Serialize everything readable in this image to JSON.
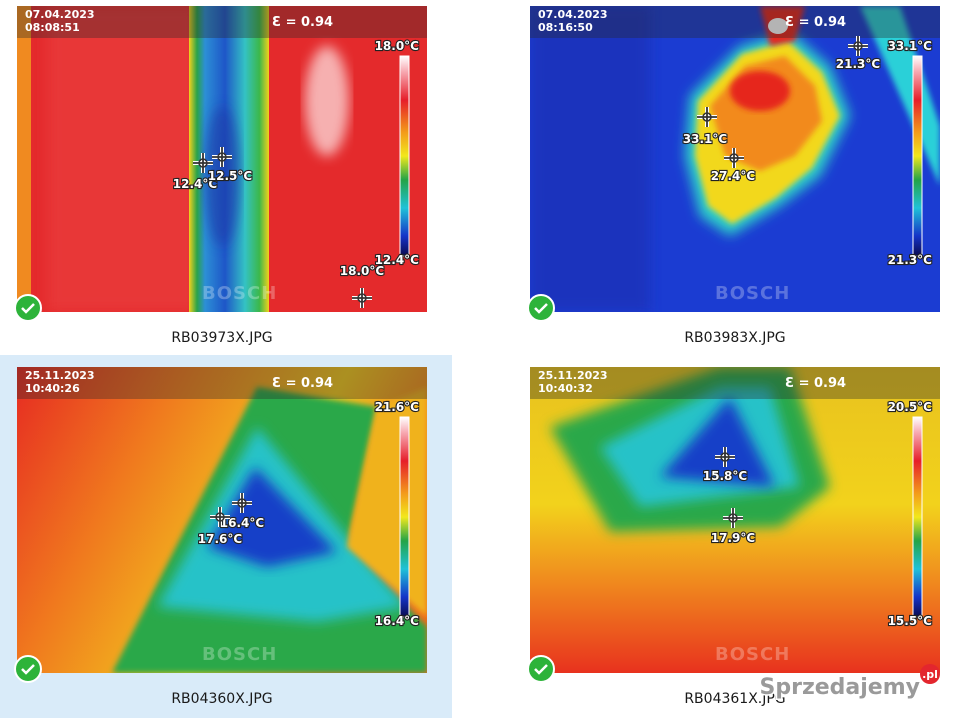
{
  "tiles": [
    {
      "date": "07.04.2023",
      "time": "08:08:51",
      "emissivity": "Ɛ = 0.94",
      "scale_max": "18.0°C",
      "scale_min": "12.4°C",
      "markers": [
        "12.4°C",
        "12.5°C",
        "18.0°C"
      ],
      "brand": "BOSCH",
      "filename": "RB03973X.JPG"
    },
    {
      "date": "07.04.2023",
      "time": "08:16:50",
      "emissivity": "Ɛ = 0.94",
      "scale_max": "33.1°C",
      "scale_min": "21.3°C",
      "markers": [
        "33.1°C",
        "27.4°C",
        "21.3°C"
      ],
      "brand": "BOSCH",
      "filename": "RB03983X.JPG"
    },
    {
      "date": "25.11.2023",
      "time": "10:40:26",
      "emissivity": "Ɛ = 0.94",
      "scale_max": "21.6°C",
      "scale_min": "16.4°C",
      "markers": [
        "16.4°C",
        "17.6°C"
      ],
      "brand": "BOSCH",
      "filename": "RB04360X.JPG"
    },
    {
      "date": "25.11.2023",
      "time": "10:40:32",
      "emissivity": "Ɛ = 0.94",
      "scale_max": "20.5°C",
      "scale_min": "15.5°C",
      "markers": [
        "15.8°C",
        "17.9°C"
      ],
      "brand": "BOSCH",
      "filename": "RB04361X.JPG"
    }
  ],
  "watermark": {
    "text": "Sprzedajemy",
    "suffix": ".pl"
  }
}
